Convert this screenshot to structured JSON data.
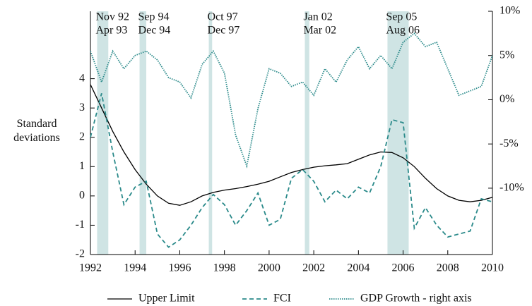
{
  "chart_data": {
    "type": "line",
    "ylabel": "Standard deviations",
    "x": [
      1992,
      1992.5,
      1993,
      1993.5,
      1994,
      1994.5,
      1995,
      1995.5,
      1996,
      1996.5,
      1997,
      1997.5,
      1998,
      1998.5,
      1999,
      1999.5,
      2000,
      2000.5,
      2001,
      2001.5,
      2002,
      2002.5,
      2003,
      2003.5,
      2004,
      2004.5,
      2005,
      2005.5,
      2006,
      2006.5,
      2007,
      2007.5,
      2008,
      2008.5,
      2009,
      2009.5,
      2010
    ],
    "xlim": [
      1992,
      2010
    ],
    "xticks": [
      1992,
      1994,
      1996,
      1998,
      2000,
      2002,
      2004,
      2006,
      2008,
      2010
    ],
    "ylim": [
      -2,
      6.3
    ],
    "yticks": [
      -2,
      -1,
      0,
      1,
      2,
      3,
      4
    ],
    "y2lim": [
      -17.5,
      10
    ],
    "y2ticks": [
      {
        "value": -10,
        "label": "-10%"
      },
      {
        "value": -5,
        "label": "-5%"
      },
      {
        "value": 0,
        "label": "0%"
      },
      {
        "value": 5,
        "label": "5%"
      },
      {
        "value": 10,
        "label": "10%"
      }
    ],
    "periods": [
      {
        "start_label": "Nov 92",
        "end_label": "Apr 93",
        "start": 1992.3,
        "end": 1992.8
      },
      {
        "start_label": "Sep 94",
        "end_label": "Dec 94",
        "start": 1994.2,
        "end": 1994.5
      },
      {
        "start_label": "Oct 97",
        "end_label": "Dec 97",
        "start": 1997.3,
        "end": 1997.45
      },
      {
        "start_label": "Jan 02",
        "end_label": "Mar 02",
        "start": 2001.6,
        "end": 2001.8
      },
      {
        "start_label": "Sep 05",
        "end_label": "Aug 06",
        "start": 2005.3,
        "end": 2006.25
      }
    ],
    "period_color": "#cfe4e4",
    "series": [
      {
        "name": "Upper Limit",
        "color": "#000000",
        "dash": "none",
        "values": [
          3.8,
          3.0,
          2.2,
          1.5,
          0.9,
          0.4,
          0.0,
          -0.25,
          -0.32,
          -0.2,
          0.0,
          0.12,
          0.2,
          0.25,
          0.32,
          0.4,
          0.5,
          0.65,
          0.8,
          0.9,
          0.98,
          1.03,
          1.06,
          1.1,
          1.25,
          1.4,
          1.5,
          1.48,
          1.3,
          1.0,
          0.6,
          0.25,
          0.0,
          -0.15,
          -0.2,
          -0.15,
          -0.05
        ]
      },
      {
        "name": "FCI",
        "color": "#2a8a8a",
        "dash": "6 4",
        "values": [
          2.0,
          3.5,
          1.5,
          -0.3,
          0.3,
          0.5,
          -1.3,
          -1.75,
          -1.5,
          -1.0,
          -0.4,
          0.05,
          -0.3,
          -1.0,
          -0.5,
          0.1,
          -1.0,
          -0.8,
          0.6,
          0.9,
          0.5,
          -0.2,
          0.2,
          -0.1,
          0.3,
          0.1,
          1.0,
          2.6,
          2.5,
          -1.1,
          -0.4,
          -1.0,
          -1.4,
          -1.3,
          -1.2,
          -0.1,
          -0.2
        ]
      },
      {
        "name": "GDP Growth - right axis",
        "color": "#2a8a8a",
        "dash": "1.5 1.5",
        "axis": "y2",
        "values": [
          5.5,
          2.0,
          5.5,
          3.5,
          5.0,
          5.5,
          4.5,
          2.5,
          2.0,
          0.2,
          4.0,
          5.5,
          3.0,
          -4.0,
          -7.5,
          -1.0,
          3.5,
          3.0,
          1.5,
          2.0,
          0.5,
          3.5,
          2.0,
          4.5,
          6.0,
          3.5,
          5.0,
          3.5,
          6.5,
          7.5,
          6.0,
          6.5,
          3.5,
          0.5,
          1.0,
          1.5,
          5.0
        ]
      }
    ]
  }
}
